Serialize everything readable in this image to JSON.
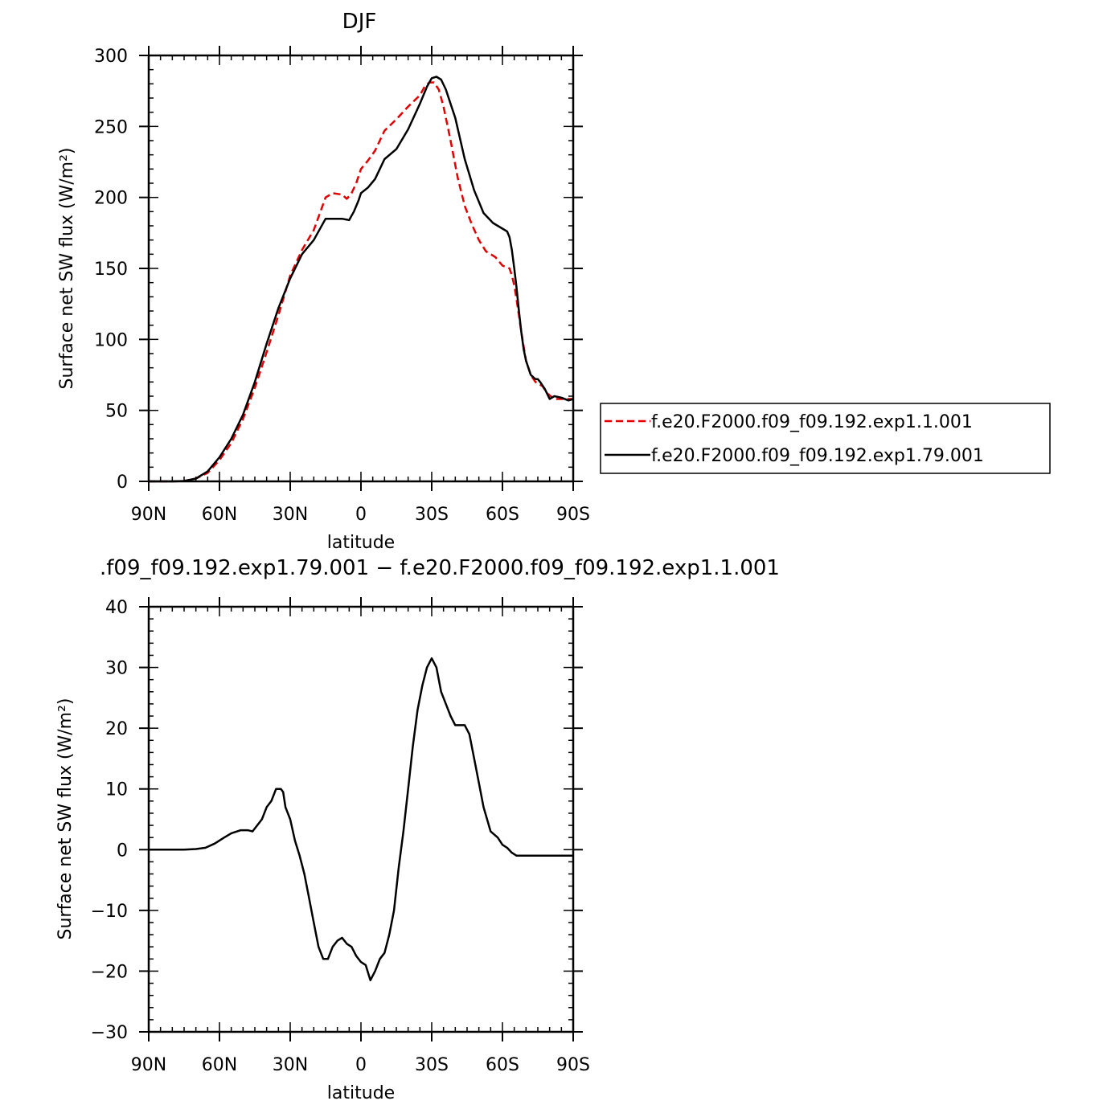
{
  "chart_data": [
    {
      "type": "line",
      "title": "DJF",
      "xlabel": "latitude",
      "ylabel": "Surface net SW flux (W/m²)",
      "xlim": [
        90,
        -90
      ],
      "ylim": [
        0,
        300
      ],
      "xticks": [
        {
          "value": 90,
          "label": "90N"
        },
        {
          "value": 60,
          "label": "60N"
        },
        {
          "value": 30,
          "label": "30N"
        },
        {
          "value": 0,
          "label": "0"
        },
        {
          "value": -30,
          "label": "30S"
        },
        {
          "value": -60,
          "label": "60S"
        },
        {
          "value": -90,
          "label": "90S"
        }
      ],
      "yticks": [
        {
          "value": 0,
          "label": "0"
        },
        {
          "value": 50,
          "label": "50"
        },
        {
          "value": 100,
          "label": "100"
        },
        {
          "value": 150,
          "label": "150"
        },
        {
          "value": 200,
          "label": "200"
        },
        {
          "value": 250,
          "label": "250"
        },
        {
          "value": 300,
          "label": "300"
        }
      ],
      "legend_position": "right",
      "series": [
        {
          "name": "f.e20.F2000.f09_f09.192.exp1.1.001",
          "color": "#e00000",
          "dash": "dashed",
          "x": [
            90,
            80,
            75,
            70,
            65,
            60,
            55,
            50,
            45,
            40,
            35,
            30,
            25,
            20,
            15,
            12,
            8,
            6,
            4,
            2,
            0,
            -3,
            -6,
            -10,
            -15,
            -20,
            -25,
            -27,
            -29,
            -31,
            -33,
            -35,
            -38,
            -41,
            -44,
            -47,
            -50,
            -53,
            -57,
            -60,
            -63,
            -64,
            -65,
            -66,
            -67,
            -68,
            -69,
            -70,
            -72,
            -74,
            -75,
            -77,
            -79,
            -82,
            -85,
            -88,
            -90
          ],
          "y": [
            0,
            0,
            0.3,
            2,
            6,
            15,
            27,
            44,
            66,
            91,
            117,
            145,
            163,
            177,
            200,
            203,
            202,
            199,
            203,
            210,
            220,
            226,
            233,
            247,
            255,
            264,
            272,
            278,
            281,
            281,
            276,
            264,
            240,
            214,
            194,
            181,
            170,
            162,
            158,
            152,
            150,
            145,
            138,
            128,
            117,
            105,
            95,
            85,
            75,
            70,
            69,
            67,
            62,
            58,
            58,
            58,
            58
          ]
        },
        {
          "name": "f.e20.F2000.f09_f09.192.exp1.79.001",
          "color": "#000000",
          "dash": "solid",
          "x": [
            90,
            80,
            75,
            70,
            65,
            60,
            55,
            50,
            45,
            40,
            35,
            30,
            25,
            20,
            15,
            12,
            8,
            5,
            3,
            1,
            0,
            -3,
            -6,
            -10,
            -15,
            -20,
            -25,
            -28,
            -30,
            -32,
            -34,
            -36,
            -40,
            -44,
            -48,
            -52,
            -56,
            -60,
            -62,
            -63,
            -64,
            -65,
            -66,
            -67,
            -68,
            -69,
            -70,
            -72,
            -74,
            -75,
            -76,
            -78,
            -80,
            -82,
            -85,
            -88,
            -90
          ],
          "y": [
            0,
            0,
            0.3,
            2,
            7,
            17,
            30,
            47,
            70,
            97,
            122,
            143,
            160,
            170,
            185,
            185,
            185,
            184,
            190,
            198,
            203,
            207,
            213,
            227,
            234,
            248,
            266,
            278,
            284,
            285,
            283,
            276,
            256,
            227,
            205,
            189,
            182,
            178,
            176,
            172,
            163,
            150,
            136,
            120,
            105,
            93,
            85,
            75,
            72,
            72,
            70,
            65,
            58,
            60,
            59,
            57,
            58
          ]
        }
      ]
    },
    {
      "type": "line",
      "title": ".f09_f09.192.exp1.79.001 − f.e20.F2000.f09_f09.192.exp1.1.001",
      "xlabel": "latitude",
      "ylabel": "Surface net SW flux (W/m²)",
      "xlim": [
        90,
        -90
      ],
      "ylim": [
        -30,
        40
      ],
      "xticks": [
        {
          "value": 90,
          "label": "90N"
        },
        {
          "value": 60,
          "label": "60N"
        },
        {
          "value": 30,
          "label": "30N"
        },
        {
          "value": 0,
          "label": "0"
        },
        {
          "value": -30,
          "label": "30S"
        },
        {
          "value": -60,
          "label": "60S"
        },
        {
          "value": -90,
          "label": "90S"
        }
      ],
      "yticks": [
        {
          "value": -30,
          "label": "−30"
        },
        {
          "value": -20,
          "label": "−20"
        },
        {
          "value": -10,
          "label": "−10"
        },
        {
          "value": 0,
          "label": "0"
        },
        {
          "value": 10,
          "label": "10"
        },
        {
          "value": 20,
          "label": "20"
        },
        {
          "value": 30,
          "label": "30"
        },
        {
          "value": 40,
          "label": "40"
        }
      ],
      "series": [
        {
          "color": "#000000",
          "dash": "solid",
          "x": [
            90,
            80,
            75,
            70,
            66,
            62,
            58,
            55,
            51,
            48,
            46,
            44,
            42,
            40,
            38,
            36,
            34,
            33,
            32,
            30,
            28,
            26,
            24,
            22,
            20,
            18,
            16,
            14,
            12,
            10,
            8,
            6,
            4,
            2,
            0,
            -2,
            -4,
            -6,
            -8,
            -10,
            -12,
            -14,
            -16,
            -18,
            -20,
            -22,
            -24,
            -26,
            -28,
            -30,
            -32,
            -34,
            -36,
            -38,
            -40,
            -42,
            -44,
            -46,
            -48,
            -50,
            -52,
            -55,
            -58,
            -60,
            -62,
            -64,
            -66,
            -68,
            -70,
            -72,
            -74,
            -76,
            -78,
            -80,
            -82,
            -84,
            -86,
            -88,
            -90
          ],
          "y": [
            0,
            0,
            0,
            0.1,
            0.3,
            1,
            2,
            2.7,
            3.2,
            3.2,
            3,
            4,
            5,
            7,
            8,
            10,
            10,
            9.5,
            7,
            5,
            1.5,
            -1,
            -4,
            -8,
            -12,
            -16,
            -18,
            -18,
            -16,
            -15,
            -14.5,
            -15.5,
            -16,
            -17.5,
            -18.5,
            -19,
            -21.5,
            -20,
            -18,
            -17,
            -14,
            -10,
            -3,
            3,
            10,
            17,
            23,
            27,
            30,
            31.5,
            30,
            26,
            24,
            22,
            20.5,
            20.5,
            20.5,
            19,
            15,
            11,
            7,
            3,
            2,
            0.8,
            0.3,
            -0.5,
            -1,
            -1,
            -1,
            -1,
            -1,
            -1,
            -1,
            -1,
            -1,
            -1,
            -1,
            -1,
            -1
          ]
        }
      ]
    }
  ]
}
